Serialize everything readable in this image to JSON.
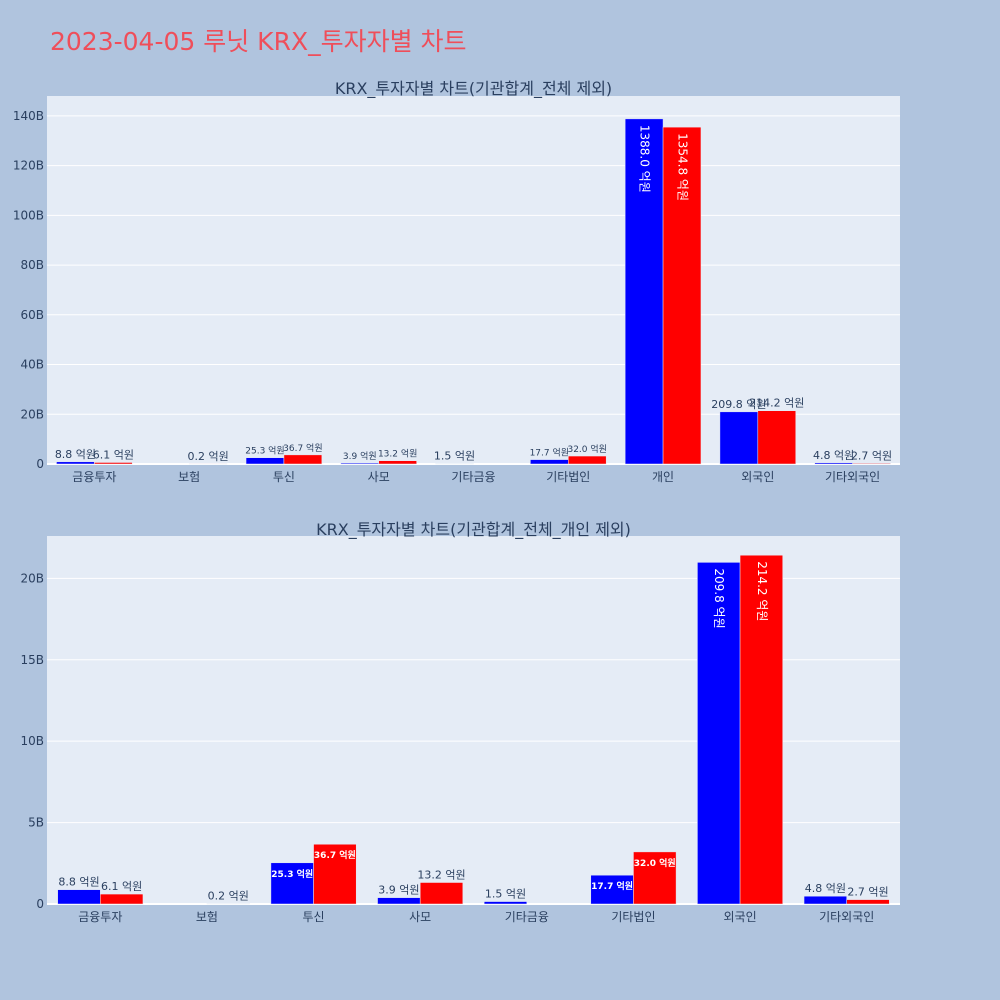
{
  "page_title": "2023-04-05 루닛 KRX_투자자별 차트",
  "colors": {
    "buy": "#0000ff",
    "sell": "#ff0000",
    "plot_bg": "#e5ecf6",
    "page_bg": "#b0c4de",
    "title": "#ef4e5a"
  },
  "chart_data": [
    {
      "type": "bar",
      "title": "KRX_투자자별 차트(기관합계_전체 제외)",
      "categories": [
        "금융투자",
        "보험",
        "투신",
        "사모",
        "기타금융",
        "기타법인",
        "개인",
        "외국인",
        "기타외국인"
      ],
      "series": [
        {
          "color": "#0000ff",
          "values": [
            0.88,
            0,
            2.53,
            0.39,
            0.15,
            1.77,
            138.8,
            20.98,
            0.48
          ],
          "labels": [
            "8.8 억원",
            "",
            "25.3 억원",
            "3.9 억원",
            "1.5 억원",
            "17.7 억원",
            "1388.0 억원",
            "209.8 억원",
            "4.8 억원"
          ]
        },
        {
          "color": "#ff0000",
          "values": [
            0.61,
            0.02,
            3.67,
            1.32,
            0,
            3.2,
            135.48,
            21.42,
            0.27
          ],
          "labels": [
            "6.1 억원",
            "0.2 억원",
            "36.7 억원",
            "13.2 억원",
            "",
            "32.0 억원",
            "1354.8 억원",
            "214.2 억원",
            "2.7 억원"
          ]
        }
      ],
      "ylim": [
        0,
        148
      ],
      "yticks": [
        0,
        20,
        40,
        60,
        80,
        100,
        120,
        140
      ],
      "ytick_labels": [
        "0",
        "20B",
        "40B",
        "60B",
        "80B",
        "100B",
        "120B",
        "140B"
      ],
      "grid": true
    },
    {
      "type": "bar",
      "title": "KRX_투자자별 차트(기관합계_전체_개인 제외)",
      "categories": [
        "금융투자",
        "보험",
        "투신",
        "사모",
        "기타금융",
        "기타법인",
        "외국인",
        "기타외국인"
      ],
      "series": [
        {
          "color": "#0000ff",
          "values": [
            0.88,
            0,
            2.53,
            0.39,
            0.15,
            1.77,
            20.98,
            0.48
          ],
          "labels": [
            "8.8 억원",
            "",
            "25.3 억원",
            "3.9 억원",
            "1.5 억원",
            "17.7 억원",
            "209.8 억원",
            "4.8 억원"
          ]
        },
        {
          "color": "#ff0000",
          "values": [
            0.61,
            0.02,
            3.67,
            1.32,
            0,
            3.2,
            21.42,
            0.27
          ],
          "labels": [
            "6.1 억원",
            "0.2 억원",
            "36.7 억원",
            "13.2 억원",
            "",
            "32.0 억원",
            "214.2 억원",
            "2.7 억원"
          ]
        }
      ],
      "ylim": [
        0,
        22.6
      ],
      "yticks": [
        0,
        5,
        10,
        15,
        20
      ],
      "ytick_labels": [
        "0",
        "5B",
        "10B",
        "15B",
        "20B"
      ],
      "grid": true
    }
  ]
}
